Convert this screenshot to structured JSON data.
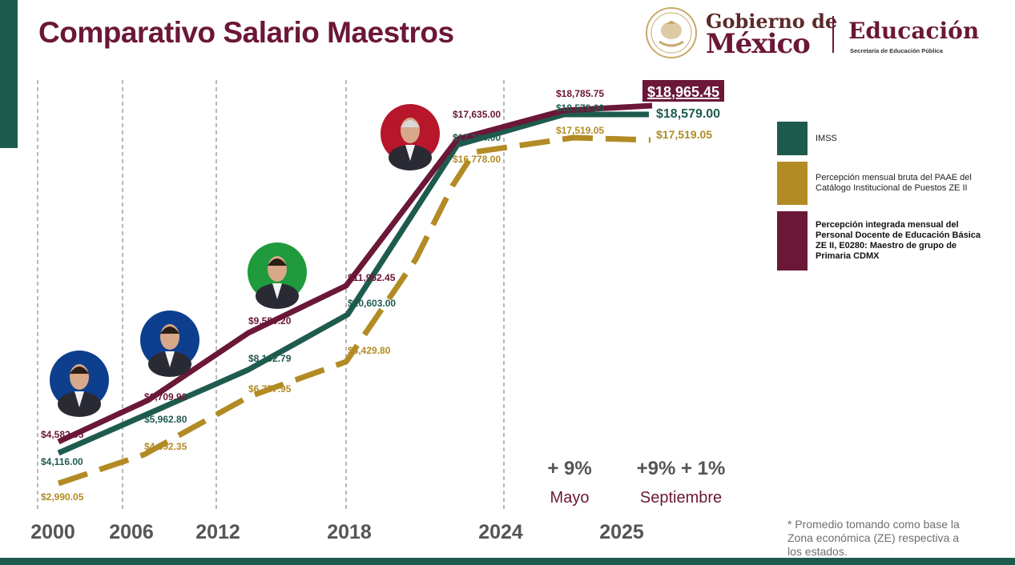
{
  "title": "Comparativo Salario Maestros",
  "header": {
    "gob_top": "Gobierno de",
    "gob_main": "México",
    "edu": "Educación",
    "edu_sub": "Secretaría de Educación Pública"
  },
  "colors": {
    "maroon": "#6b1737",
    "green": "#1e5b4f",
    "gold": "#b28b25",
    "grid": "#8a8a8a"
  },
  "chart_data": {
    "type": "line",
    "x_ticks": [
      "2000",
      "2006",
      "2012",
      "2018",
      "2024",
      "2025"
    ],
    "series": [
      {
        "name": "IMSS",
        "color": "#1e5b4f",
        "dash": false,
        "points": [
          {
            "label": "$4,116.00"
          },
          {
            "label": "$5,962.80"
          },
          {
            "label": "$8,102.79"
          },
          {
            "label": "$10,603.00"
          },
          {
            "label": "$17,364.00"
          },
          {
            "label": "$18,579.00"
          },
          {
            "label": "$18,579.00"
          }
        ]
      },
      {
        "name": "Percepción mensual bruta del PAAE del Catálogo Institucional de Puestos ZE II",
        "color": "#b28b25",
        "dash": true,
        "points": [
          {
            "label": "$2,990.05"
          },
          {
            "label": "$4,392.35"
          },
          {
            "label": "$6,757.95"
          },
          {
            "label": "$8,429.80"
          },
          {
            "label": "$16,778.00"
          },
          {
            "label": "$17,519.05"
          },
          {
            "label": "$17,519.05"
          }
        ]
      },
      {
        "name": "Percepción integrada mensual del Personal Docente de Educación Básica ZE II, E0280: Maestro de grupo de Primaria CDMX",
        "color": "#6b1737",
        "dash": false,
        "points": [
          {
            "label": "$4,582.05"
          },
          {
            "label": "$6,709.90"
          },
          {
            "label": "$9,580.20"
          },
          {
            "label": "$11,952.45"
          },
          {
            "label": "$17,635.00"
          },
          {
            "label": "$18,785.75"
          },
          {
            "label": "$18,965.45"
          }
        ]
      }
    ],
    "annotations": [
      {
        "value": "+ 9%",
        "label": "Mayo"
      },
      {
        "value": "+9% + 1%",
        "label": "Septiembre"
      }
    ]
  },
  "legend": [
    {
      "color": "#1e5b4f",
      "label": "IMSS",
      "bold": false
    },
    {
      "color": "#b28b25",
      "label": "Percepción mensual bruta del PAAE del Catálogo Institucional de Puestos ZE II",
      "bold": false
    },
    {
      "color": "#6b1737",
      "label": "Percepción integrada mensual del Personal Docente de Educación Básica ZE II, E0280: Maestro de grupo de Primaria CDMX",
      "bold": true
    }
  ],
  "portraits": [
    {
      "background": "#0e3f8e"
    },
    {
      "background": "#0e3f8e"
    },
    {
      "background": "#1f9a3c"
    },
    {
      "background": "#b8162b"
    }
  ],
  "footnote": "* Promedio tomando como base la Zona económica (ZE) respectiva a los estados."
}
